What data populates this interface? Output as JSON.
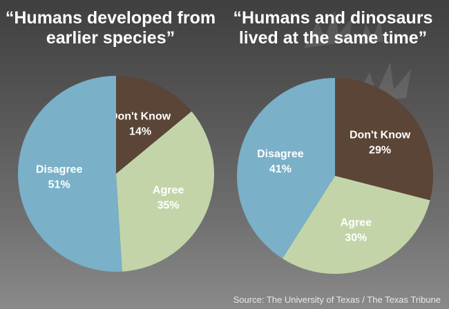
{
  "chart_data": [
    {
      "type": "pie",
      "title_lines": [
        "“Humans developed from",
        "earlier species”"
      ],
      "slices": [
        {
          "label": "Don't Know",
          "value": 14,
          "value_label": "14%",
          "color": "#5a4537",
          "text_color": "#ffffff"
        },
        {
          "label": "Agree",
          "value": 35,
          "value_label": "35%",
          "color": "#c3d5a8",
          "text_color": "#ffffff"
        },
        {
          "label": "Disagree",
          "value": 51,
          "value_label": "51%",
          "color": "#7ab0c8",
          "text_color": "#ffffff"
        }
      ]
    },
    {
      "type": "pie",
      "title_lines": [
        "“Humans and dinosaurs",
        "lived at the same time”"
      ],
      "slices": [
        {
          "label": "Don't Know",
          "value": 29,
          "value_label": "29%",
          "color": "#5a4537",
          "text_color": "#ffffff"
        },
        {
          "label": "Agree",
          "value": 30,
          "value_label": "30%",
          "color": "#c3d5a8",
          "text_color": "#ffffff"
        },
        {
          "label": "Disagree",
          "value": 41,
          "value_label": "41%",
          "color": "#7ab0c8",
          "text_color": "#ffffff"
        }
      ]
    }
  ],
  "source": "Source: The University of Texas / The Texas Tribune"
}
